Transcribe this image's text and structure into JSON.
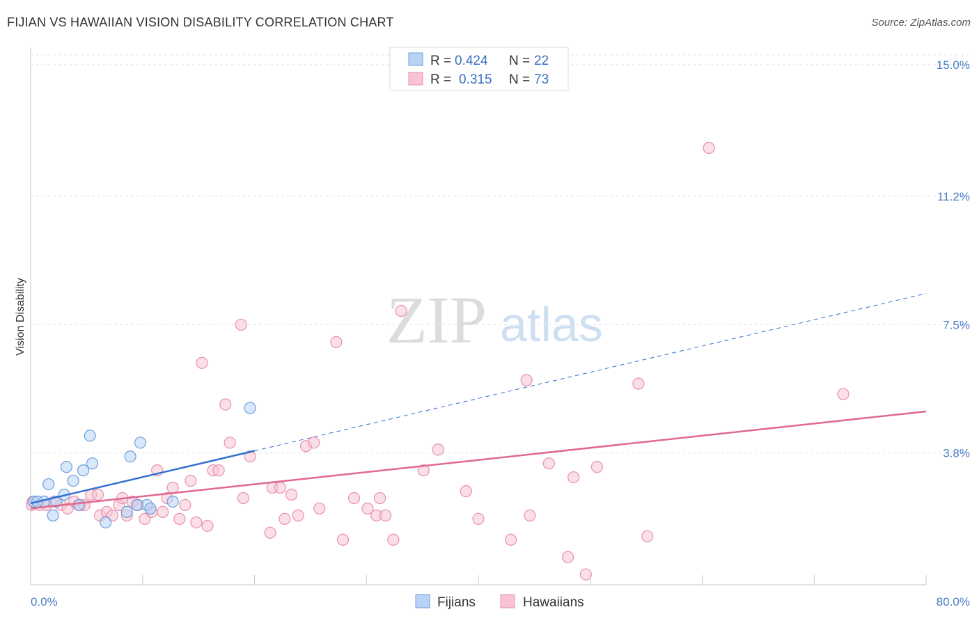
{
  "header": {
    "title": "FIJIAN VS HAWAIIAN VISION DISABILITY CORRELATION CHART",
    "source": "Source: ZipAtlas.com"
  },
  "watermark": {
    "zip": "ZIP",
    "atlas": "atlas"
  },
  "legend": {
    "fijians": {
      "r_label": "R =",
      "r_value": "0.424",
      "n_label": "N =",
      "n_value": "22"
    },
    "hawaiians": {
      "r_label": "R =",
      "r_value": "0.315",
      "n_label": "N =",
      "n_value": "73"
    }
  },
  "bottom_legend": {
    "fijians": "Fijians",
    "hawaiians": "Hawaiians"
  },
  "colors": {
    "fijians_fill": "#b8d3f5",
    "fijians_stroke": "#6b9ed8",
    "fijians_line": "#2f6fd0",
    "hawaiians_fill": "#f8c4d4",
    "hawaiians_stroke": "#e890ae",
    "hawaiians_line": "#e06890"
  },
  "chart_data": {
    "type": "scatter",
    "title": "FIJIAN VS HAWAIIAN VISION DISABILITY CORRELATION CHART",
    "xlabel": "",
    "ylabel": "Vision Disability",
    "xlim": [
      0,
      80
    ],
    "ylim": [
      0,
      15.5
    ],
    "x_tick_labels": [
      "0.0%",
      "80.0%"
    ],
    "y_ticks": [
      {
        "value": 3.8,
        "label": "3.8%"
      },
      {
        "value": 7.5,
        "label": "7.5%"
      },
      {
        "value": 11.2,
        "label": "11.2%"
      },
      {
        "value": 15.0,
        "label": "15.0%"
      }
    ],
    "series": [
      {
        "name": "Fijians",
        "R": 0.424,
        "N": 22,
        "trend": {
          "x0": 0,
          "y0": 2.35,
          "x1": 80,
          "y1": 8.4,
          "solid_until_x": 20
        },
        "points": [
          [
            0.3,
            2.4
          ],
          [
            1.2,
            2.4
          ],
          [
            1.6,
            2.9
          ],
          [
            2.0,
            2.0
          ],
          [
            2.3,
            2.4
          ],
          [
            3.0,
            2.6
          ],
          [
            3.2,
            3.4
          ],
          [
            3.8,
            3.0
          ],
          [
            4.3,
            2.3
          ],
          [
            4.7,
            3.3
          ],
          [
            5.3,
            4.3
          ],
          [
            5.5,
            3.5
          ],
          [
            6.7,
            1.8
          ],
          [
            8.6,
            2.1
          ],
          [
            8.9,
            3.7
          ],
          [
            9.5,
            2.3
          ],
          [
            9.8,
            4.1
          ],
          [
            10.4,
            2.3
          ],
          [
            10.7,
            2.2
          ],
          [
            12.7,
            2.4
          ],
          [
            19.6,
            5.1
          ],
          [
            0.6,
            2.4
          ]
        ]
      },
      {
        "name": "Hawaiians",
        "R": 0.315,
        "N": 73,
        "trend": {
          "x0": 0,
          "y0": 2.2,
          "x1": 80,
          "y1": 5.0
        },
        "points": [
          [
            0.2,
            2.4
          ],
          [
            0.8,
            2.3
          ],
          [
            1.4,
            2.3
          ],
          [
            2.1,
            2.4
          ],
          [
            2.7,
            2.3
          ],
          [
            3.3,
            2.2
          ],
          [
            3.9,
            2.4
          ],
          [
            4.4,
            2.3
          ],
          [
            4.8,
            2.3
          ],
          [
            5.4,
            2.6
          ],
          [
            6.0,
            2.6
          ],
          [
            6.2,
            2.0
          ],
          [
            6.8,
            2.1
          ],
          [
            7.3,
            2.0
          ],
          [
            7.9,
            2.3
          ],
          [
            8.2,
            2.5
          ],
          [
            8.6,
            2.0
          ],
          [
            9.1,
            2.4
          ],
          [
            9.6,
            2.3
          ],
          [
            10.2,
            1.9
          ],
          [
            10.8,
            2.1
          ],
          [
            11.3,
            3.3
          ],
          [
            11.8,
            2.1
          ],
          [
            12.2,
            2.5
          ],
          [
            12.7,
            2.8
          ],
          [
            13.3,
            1.9
          ],
          [
            13.8,
            2.3
          ],
          [
            14.3,
            3.0
          ],
          [
            14.8,
            1.8
          ],
          [
            15.3,
            6.4
          ],
          [
            15.8,
            1.7
          ],
          [
            16.3,
            3.3
          ],
          [
            16.8,
            3.3
          ],
          [
            17.4,
            5.2
          ],
          [
            17.8,
            4.1
          ],
          [
            18.8,
            7.5
          ],
          [
            19.0,
            2.5
          ],
          [
            19.6,
            3.7
          ],
          [
            21.4,
            1.5
          ],
          [
            21.6,
            2.8
          ],
          [
            22.3,
            2.8
          ],
          [
            22.7,
            1.9
          ],
          [
            23.3,
            2.6
          ],
          [
            23.9,
            2.0
          ],
          [
            24.6,
            4.0
          ],
          [
            25.3,
            4.1
          ],
          [
            25.8,
            2.2
          ],
          [
            27.3,
            7.0
          ],
          [
            27.9,
            1.3
          ],
          [
            28.9,
            2.5
          ],
          [
            30.1,
            2.2
          ],
          [
            30.9,
            2.0
          ],
          [
            31.2,
            2.5
          ],
          [
            31.7,
            2.0
          ],
          [
            32.4,
            1.3
          ],
          [
            33.1,
            7.9
          ],
          [
            35.1,
            3.3
          ],
          [
            36.4,
            3.9
          ],
          [
            38.9,
            2.7
          ],
          [
            40.0,
            1.9
          ],
          [
            42.9,
            1.3
          ],
          [
            44.3,
            5.9
          ],
          [
            44.6,
            2.0
          ],
          [
            46.3,
            3.5
          ],
          [
            48.0,
            0.8
          ],
          [
            48.5,
            3.1
          ],
          [
            49.6,
            0.3
          ],
          [
            50.6,
            3.4
          ],
          [
            54.3,
            5.8
          ],
          [
            55.1,
            1.4
          ],
          [
            60.6,
            12.6
          ],
          [
            72.6,
            5.5
          ],
          [
            0.1,
            2.3
          ]
        ]
      }
    ]
  }
}
